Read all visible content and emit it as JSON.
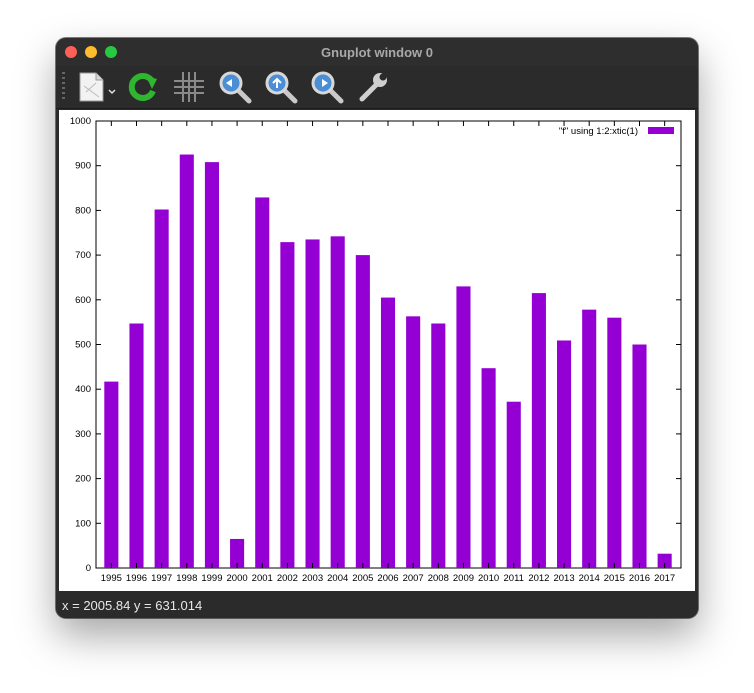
{
  "window": {
    "title": "Gnuplot window 0"
  },
  "toolbar": {
    "icons": [
      "export-icon",
      "replot-icon",
      "grid-icon",
      "zoom-back-icon",
      "zoom-forward-icon",
      "zoom-next-icon",
      "settings-icon"
    ]
  },
  "status": {
    "text": "x = 2005.84 y = 631.014"
  },
  "colors": {
    "bar": "#9400d3"
  },
  "chart_data": {
    "type": "bar",
    "title": "",
    "xlabel": "",
    "ylabel": "",
    "legend_placement": "top-right",
    "grid": false,
    "ylim": [
      0,
      1000
    ],
    "yticks": [
      0,
      100,
      200,
      300,
      400,
      500,
      600,
      700,
      800,
      900,
      1000
    ],
    "categories": [
      "1995",
      "1996",
      "1997",
      "1998",
      "1999",
      "2000",
      "2001",
      "2002",
      "2003",
      "2004",
      "2005",
      "2006",
      "2007",
      "2008",
      "2009",
      "2010",
      "2011",
      "2012",
      "2013",
      "2014",
      "2015",
      "2016",
      "2017"
    ],
    "series": [
      {
        "name": "\"f\" using 1:2:xtic(1)",
        "values": [
          417,
          547,
          802,
          925,
          908,
          65,
          829,
          729,
          735,
          742,
          700,
          605,
          563,
          547,
          630,
          447,
          372,
          615,
          509,
          578,
          560,
          500,
          32
        ]
      }
    ]
  }
}
